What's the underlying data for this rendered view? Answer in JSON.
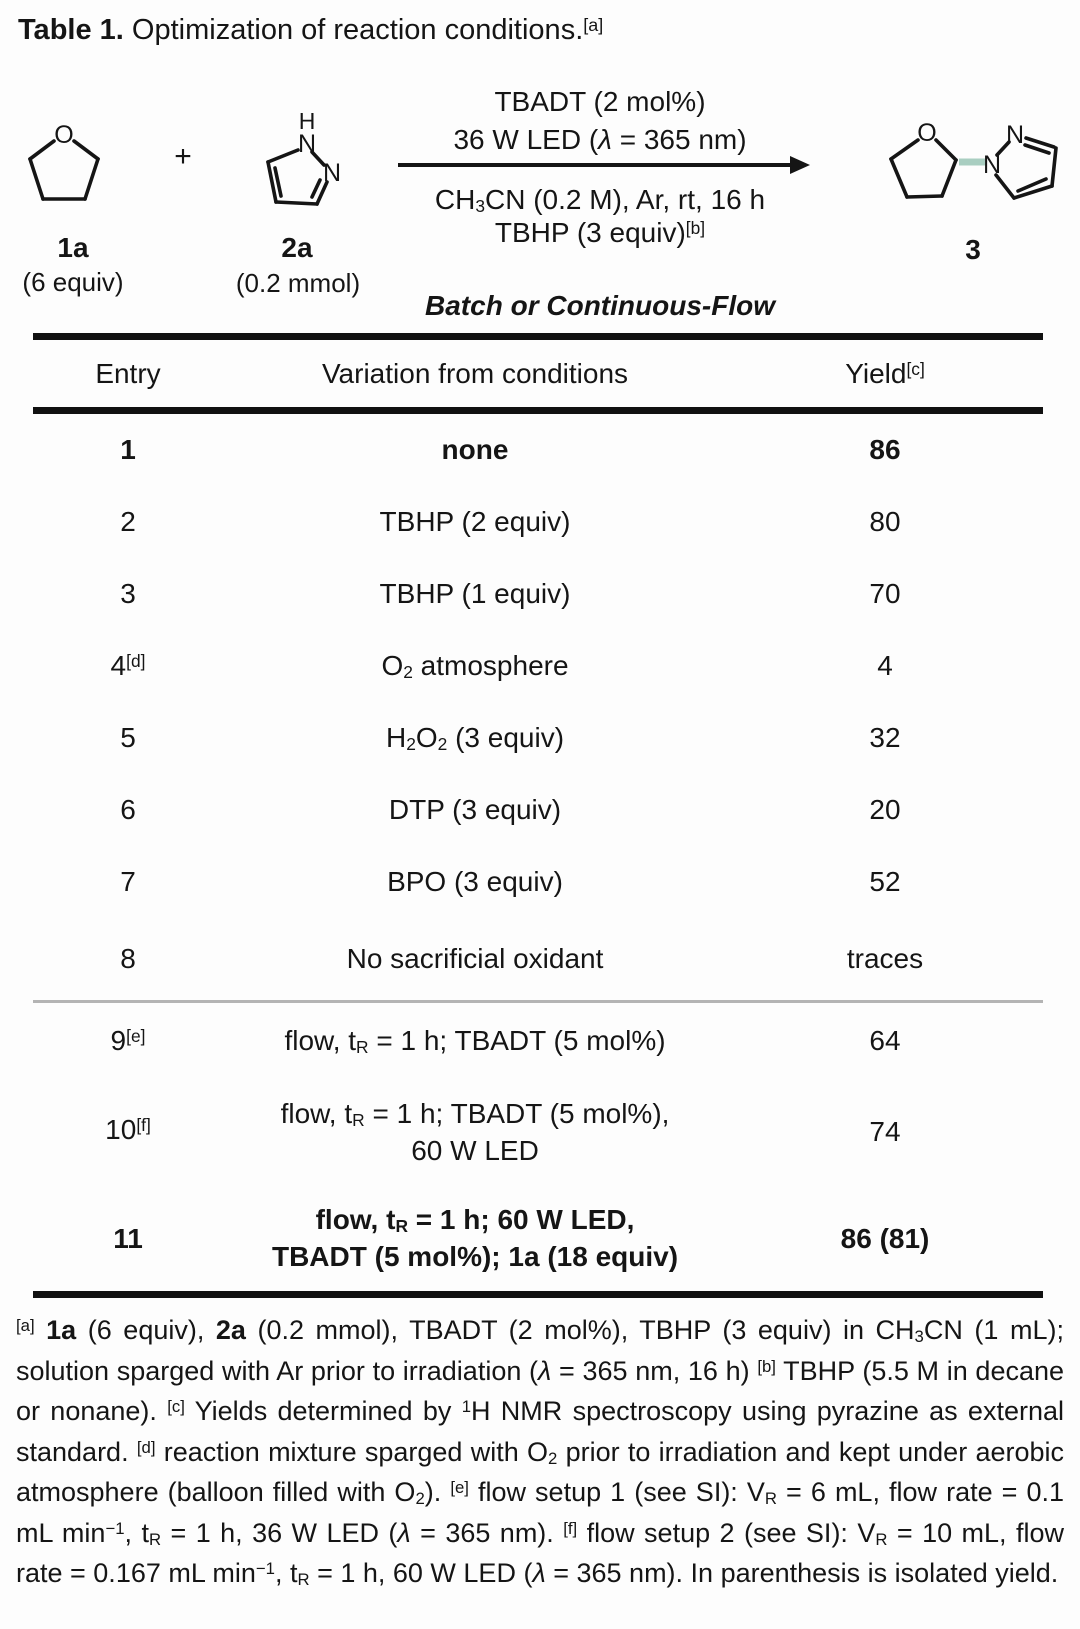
{
  "title": {
    "label": "Table 1.",
    "text": "Optimization of reaction conditions.",
    "ref": "[a]"
  },
  "scheme": {
    "conditions_above": [
      "TBADT (2 mol%)",
      "36 W LED (<i>λ</i> = 365 nm)"
    ],
    "conditions_below": [
      "CH<sub>3</sub>CN (0.2 M), Ar, rt, 16 h",
      "TBHP (3 equiv)<sup>[b]</sup>"
    ],
    "mode": "Batch or Continuous-Flow",
    "plus": "+",
    "reactant1": {
      "label": "1a",
      "amount": "(6 equiv)"
    },
    "reactant2": {
      "label": "2a",
      "amount": "(0.2 mmol)"
    },
    "product": {
      "label": "3"
    },
    "atoms": {
      "O": "O",
      "N": "N",
      "H": "H"
    },
    "highlight_color": "#a9cec1"
  },
  "table": {
    "headers": [
      "Entry",
      "Variation from conditions",
      "Yield<sup>[c]</sup>"
    ],
    "rows": [
      {
        "entry": "1",
        "variation": "none",
        "yield": "86"
      },
      {
        "entry": "2",
        "variation": "TBHP (2 equiv)",
        "yield": "80"
      },
      {
        "entry": "3",
        "variation": "TBHP (1 equiv)",
        "yield": "70"
      },
      {
        "entry": "4<sup>[d]</sup>",
        "variation": "O<sub>2</sub> atmosphere",
        "yield": "4"
      },
      {
        "entry": "5",
        "variation": "H<sub>2</sub>O<sub>2</sub> (3 equiv)",
        "yield": "32"
      },
      {
        "entry": "6",
        "variation": "DTP (3 equiv)",
        "yield": "20"
      },
      {
        "entry": "7",
        "variation": "BPO (3 equiv)",
        "yield": "52"
      },
      {
        "entry": "8",
        "variation": "No sacrificial oxidant",
        "yield": "traces"
      },
      {
        "entry": "9<sup>[e]</sup>",
        "variation": "flow, t<sub>R</sub> = 1 h; TBADT (5 mol%)",
        "yield": "64"
      },
      {
        "entry": "10<sup>[f]</sup>",
        "variation": "flow, t<sub>R</sub> = 1 h; TBADT (5 mol%),<br>60 W LED",
        "yield": "74"
      },
      {
        "entry": "11",
        "variation": "flow, t<sub>R</sub> = 1 h; 60 W LED,<br>TBADT (5 mol%); 1a (18 equiv)",
        "yield": "86 (81)"
      }
    ]
  },
  "footnote": {
    "html": "<sup>[a]</sup> <b>1a</b> (6 equiv), <b>2a</b> (0.2 mmol), TBADT (2 mol%), TBHP (3 equiv) in CH<sub>3</sub>CN (1 mL); solution sparged with Ar prior to irradiation (<i>λ</i> = 365 nm, 16 h) <sup>[b]</sup> TBHP (5.5 M in decane or nonane). <sup>[c]</sup> Yields determined by <sup>1</sup>H NMR spectroscopy using pyrazine as external standard. <sup>[d]</sup> reaction mixture sparged with O<sub>2</sub> prior to irradiation and kept under aerobic atmosphere (balloon filled with O<sub>2</sub>). <sup>[e]</sup> flow setup 1 (see SI): V<sub>R</sub> = 6 mL, flow rate = 0.1 mL min<sup>−1</sup>, t<sub>R</sub> = 1 h, 36 W LED (<i>λ</i> = 365 nm). <sup>[f]</sup> flow setup 2 (see SI): V<sub>R</sub> = 10 mL, flow rate = 0.167 mL min<sup>−1</sup>, t<sub>R</sub> = 1 h, 60 W LED (<i>λ</i> = 365 nm). In parenthesis is isolated yield."
  }
}
